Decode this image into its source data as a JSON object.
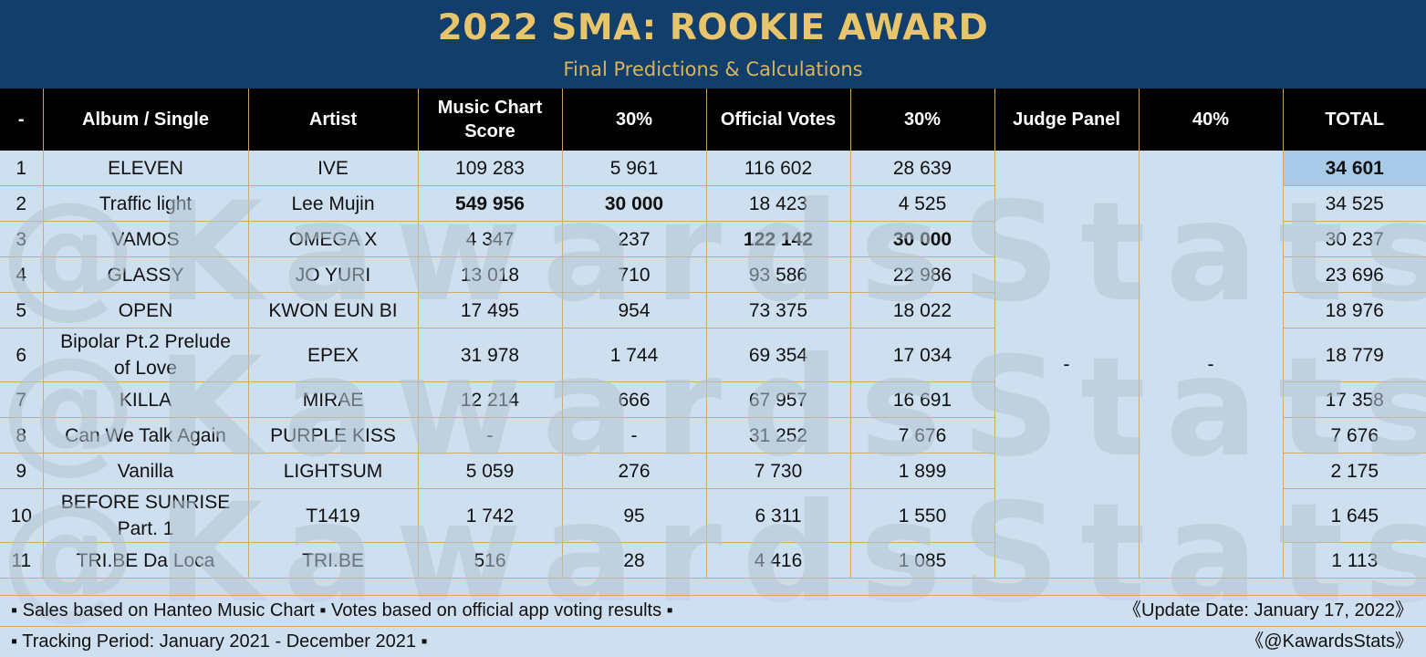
{
  "header": {
    "title": "2022 SMA: ROOKIE AWARD",
    "subtitle": "Final Predictions & Calculations"
  },
  "watermark": "@KawardsStats",
  "table": {
    "columns": [
      "-",
      "Album / Single",
      "Artist",
      "Music Chart Score",
      "30%",
      "Official Votes",
      "30%",
      "Judge Panel",
      "40%",
      "TOTAL"
    ],
    "judge_panel_value": "-",
    "judge_pct_value": "-",
    "rows": [
      {
        "rank": "1",
        "album": "ELEVEN",
        "artist": "IVE",
        "chart": "109 283",
        "chart_pct": "5 961",
        "votes": "116 602",
        "votes_pct": "28 639",
        "total": "34 601"
      },
      {
        "rank": "2",
        "album": "Traffic light",
        "artist": "Lee Mujin",
        "chart": "549 956",
        "chart_pct": "30 000",
        "votes": "18 423",
        "votes_pct": "4 525",
        "total": "34 525"
      },
      {
        "rank": "3",
        "album": "VAMOS",
        "artist": "OMEGA X",
        "chart": "4 347",
        "chart_pct": "237",
        "votes": "122 142",
        "votes_pct": "30 000",
        "total": "30 237"
      },
      {
        "rank": "4",
        "album": "GLASSY",
        "artist": "JO YURI",
        "chart": "13 018",
        "chart_pct": "710",
        "votes": "93 586",
        "votes_pct": "22 986",
        "total": "23 696"
      },
      {
        "rank": "5",
        "album": "OPEN",
        "artist": "KWON EUN BI",
        "chart": "17 495",
        "chart_pct": "954",
        "votes": "73 375",
        "votes_pct": "18 022",
        "total": "18 976"
      },
      {
        "rank": "6",
        "album": "Bipolar Pt.2 Prelude of Love",
        "artist": "EPEX",
        "chart": "31 978",
        "chart_pct": "1 744",
        "votes": "69 354",
        "votes_pct": "17 034",
        "total": "18 779"
      },
      {
        "rank": "7",
        "album": "KILLA",
        "artist": "MIRAE",
        "chart": "12 214",
        "chart_pct": "666",
        "votes": "67 957",
        "votes_pct": "16 691",
        "total": "17 358"
      },
      {
        "rank": "8",
        "album": "Can We Talk Again",
        "artist": "PURPLE KISS",
        "chart": "-",
        "chart_pct": "-",
        "votes": "31 252",
        "votes_pct": "7 676",
        "total": "7 676"
      },
      {
        "rank": "9",
        "album": "Vanilla",
        "artist": "LIGHTSUM",
        "chart": "5 059",
        "chart_pct": "276",
        "votes": "7 730",
        "votes_pct": "1 899",
        "total": "2 175"
      },
      {
        "rank": "10",
        "album": "BEFORE SUNRISE Part. 1",
        "artist": "T1419",
        "chart": "1 742",
        "chart_pct": "95",
        "votes": "6 311",
        "votes_pct": "1 550",
        "total": "1 645"
      },
      {
        "rank": "11",
        "album": "TRI.BE Da Loca",
        "artist": "TRI.BE",
        "chart": "516",
        "chart_pct": "28",
        "votes": "4 416",
        "votes_pct": "1 085",
        "total": "1 113"
      }
    ]
  },
  "footer": {
    "line1_left": "▪ Sales based on Hanteo Music Chart  ▪ Votes based on official app voting results  ▪",
    "line1_right": "《Update Date: January 17, 2022》",
    "line2_left": "▪ Tracking Period: January 2021 - December 2021  ▪",
    "line2_right": "《@KawardsStats》"
  }
}
